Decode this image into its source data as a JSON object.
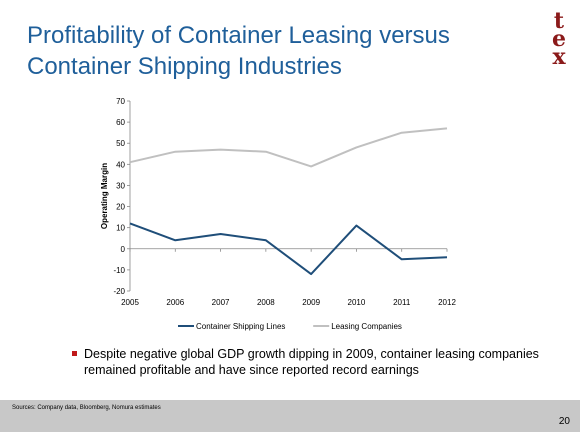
{
  "title": "Profitability of Container Leasing versus Container Shipping Industries",
  "logo": {
    "letters": [
      "t",
      "e",
      "x"
    ],
    "color": "#8b1a1a"
  },
  "bullet": "Despite negative global GDP growth dipping in 2009, container leasing companies remained profitable and have since reported record earnings",
  "footer": {
    "sources": "Sources: Company data, Bloomberg, Nomura estimates",
    "page": "20"
  },
  "chart_data": {
    "type": "line",
    "x": [
      "2005",
      "2006",
      "2007",
      "2008",
      "2009",
      "2010",
      "2011",
      "2012"
    ],
    "series": [
      {
        "name": "Container Shipping Lines",
        "values": [
          12,
          4,
          7,
          4,
          -12,
          11,
          -5,
          -4
        ],
        "color": "#1f4e79"
      },
      {
        "name": "Leasing Companies",
        "values": [
          41,
          46,
          47,
          46,
          39,
          48,
          55,
          57
        ],
        "color": "#c0c0c0"
      }
    ],
    "ylabel": "Operating Margin",
    "ylim": [
      -20,
      70
    ],
    "yticks": [
      -20,
      -10,
      0,
      10,
      20,
      30,
      40,
      50,
      60,
      70
    ],
    "grid": false,
    "legend": "bottom"
  }
}
